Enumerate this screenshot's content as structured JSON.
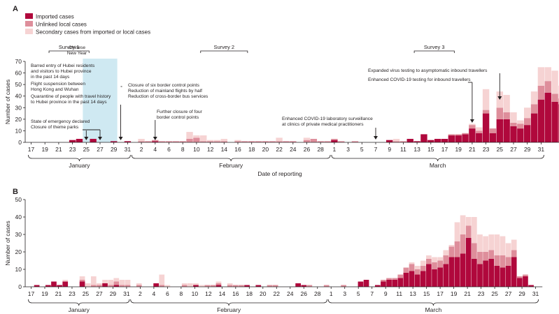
{
  "colors": {
    "imported": "#b0083c",
    "unlinked": "#de8e9b",
    "secondary": "#f6d3d3",
    "survey_shade": "#cfe9f2",
    "axis": "#231f20"
  },
  "legend": {
    "items": [
      {
        "key": "imported",
        "label": "Imported cases"
      },
      {
        "key": "unlinked",
        "label": "Unlinked local cases"
      },
      {
        "key": "secondary",
        "label": "Secondary cases from imported or local cases"
      }
    ]
  },
  "dates": {
    "start": "Jan 17",
    "month_days": [
      15,
      29,
      31
    ],
    "tick_labels": [
      "17",
      "19",
      "21",
      "23",
      "25",
      "27",
      "29",
      "31",
      "2",
      "4",
      "6",
      "8",
      "10",
      "12",
      "14",
      "16",
      "18",
      "20",
      "22",
      "24",
      "26",
      "28",
      "1",
      "3",
      "5",
      "7",
      "9",
      "11",
      "13",
      "15",
      "17",
      "19",
      "21",
      "23",
      "25",
      "27",
      "29",
      "31"
    ],
    "months": [
      "January",
      "February",
      "March"
    ]
  },
  "chart_data": [
    {
      "type": "bar",
      "stacked": true,
      "panel": "A",
      "title": "",
      "xlabel": "Date of reporting",
      "ylabel": "Number of cases",
      "ylim": [
        0,
        70
      ],
      "yticks": [
        0,
        10,
        20,
        30,
        40,
        50,
        60,
        70
      ],
      "x_range": [
        "Jan 17",
        "Mar 31"
      ],
      "series_order": [
        "imported",
        "unlinked",
        "secondary"
      ],
      "series": [
        {
          "key": "imported",
          "name": "Imported cases",
          "values": [
            0,
            0,
            0,
            0,
            0,
            0,
            2,
            3,
            0,
            3,
            0,
            0,
            1,
            0,
            1,
            0,
            0,
            0,
            1,
            0,
            0,
            0,
            0,
            0,
            0,
            0,
            0,
            0,
            0,
            0,
            0,
            0,
            0,
            0,
            0,
            0,
            0,
            0,
            0,
            0,
            0,
            0,
            0,
            0,
            2,
            0,
            0,
            0,
            0,
            0,
            0,
            0,
            2,
            0,
            0,
            3,
            1,
            7,
            2,
            3,
            3,
            6,
            6,
            7,
            12,
            8,
            25,
            8,
            20,
            20,
            14,
            12,
            15,
            25,
            37,
            43,
            35,
            33,
            24
          ]
        },
        {
          "key": "unlinked",
          "name": "Unlinked local cases",
          "values": [
            0,
            0,
            0,
            0,
            0,
            0,
            0,
            0,
            0,
            0,
            0,
            0,
            0,
            0,
            0,
            0,
            1,
            1,
            1,
            1,
            1,
            1,
            1,
            3,
            4,
            1,
            1,
            1,
            1,
            0,
            1,
            1,
            1,
            1,
            1,
            1,
            1,
            1,
            1,
            0,
            2,
            3,
            1,
            1,
            1,
            1,
            0,
            1,
            0,
            0,
            0,
            0,
            0,
            1,
            1,
            0,
            0,
            0,
            0,
            0,
            0,
            1,
            1,
            1,
            3,
            2,
            3,
            4,
            10,
            6,
            3,
            4,
            6,
            8,
            12,
            10,
            7,
            5,
            3
          ]
        },
        {
          "key": "secondary",
          "name": "Secondary cases from imported or local cases",
          "values": [
            0,
            0,
            0,
            0,
            0,
            0,
            0,
            0,
            0,
            0,
            0,
            0,
            0,
            0,
            0,
            0,
            2,
            0,
            0,
            0,
            0,
            0,
            0,
            6,
            2,
            5,
            1,
            1,
            2,
            0,
            1,
            0,
            0,
            0,
            0,
            0,
            3,
            0,
            0,
            0,
            2,
            0,
            0,
            0,
            0,
            0,
            0,
            0,
            0,
            0,
            0,
            0,
            0,
            2,
            0,
            0,
            0,
            0,
            0,
            0,
            0,
            0,
            0,
            0,
            1,
            3,
            18,
            0,
            14,
            15,
            9,
            3,
            9,
            11,
            16,
            12,
            20,
            11,
            5
          ]
        }
      ],
      "annotations": [
        {
          "text": "Barred entry of Hubei residents",
          "date_index": 6
        },
        {
          "text": "and visitors to Hubei province",
          "date_index": 6
        },
        {
          "text": "in the past 14 days",
          "date_index": 6
        },
        {
          "text": "Flight suspension between",
          "date_index": 6
        },
        {
          "text": "Hong Kong and Wuhan",
          "date_index": 6
        },
        {
          "text": "Quarantine of people with travel history",
          "date_index": 6
        },
        {
          "text": "to Hubei province in the past 14 days",
          "date_index": 6
        },
        {
          "text": "State of emergency declared",
          "date_index": 8
        },
        {
          "text": "Closure of theme parks",
          "date_index": 10
        },
        {
          "text": "Chinese",
          "date_index": 10
        },
        {
          "text": "New Year",
          "date_index": 10
        },
        {
          "text": "Closure of six border control points",
          "date_index": 13
        },
        {
          "text": "Reduction of mainland flights by half",
          "date_index": 13
        },
        {
          "text": "Reduction of cross-border bus services",
          "date_index": 13
        },
        {
          "text": "Further closure of four",
          "date_index": 18
        },
        {
          "text": "border control points",
          "date_index": 18
        },
        {
          "text": "Enhanced COVID-19 laboratory surveillance",
          "date_index": 50
        },
        {
          "text": "at clinics of private medical practitioners",
          "date_index": 50
        },
        {
          "text": "Expanded virus testing to asymptomatic inbound travellers",
          "date_index": 68
        },
        {
          "text": "Enhanced COVID-19 testing for inbound travellers",
          "date_index": 64
        }
      ],
      "surveys": [
        {
          "label": "Survey 1",
          "start_index": 3,
          "end_index": 8
        },
        {
          "label": "Survey 2",
          "start_index": 25,
          "end_index": 31
        },
        {
          "label": "Survey 3",
          "start_index": 56,
          "end_index": 61
        }
      ],
      "shaded_period": {
        "start_index": 8,
        "end_index": 12
      }
    },
    {
      "type": "bar",
      "stacked": true,
      "panel": "B",
      "title": "",
      "xlabel": "",
      "ylabel": "Number of cases",
      "ylim": [
        0,
        50
      ],
      "yticks": [
        0,
        10,
        20,
        30,
        40,
        50
      ],
      "x_range": [
        "Jan 17",
        "Mar 31"
      ],
      "series_order": [
        "imported",
        "unlinked",
        "secondary"
      ],
      "series": [
        {
          "key": "imported",
          "name": "Imported cases",
          "values": [
            0,
            1,
            0,
            1,
            3,
            1,
            3,
            0,
            0,
            3,
            0,
            0,
            0,
            2,
            0,
            1,
            0,
            0,
            0,
            0,
            0,
            0,
            2,
            0,
            0,
            0,
            0,
            0,
            0,
            1,
            0,
            0,
            0,
            1,
            0,
            0,
            0,
            0,
            1,
            0,
            1,
            0,
            0,
            0,
            0,
            0,
            0,
            2,
            1,
            0,
            0,
            0,
            0,
            0,
            0,
            0,
            0,
            0,
            3,
            4,
            0,
            1,
            3,
            4,
            4,
            5,
            8,
            9,
            7,
            9,
            13,
            10,
            11,
            13,
            17,
            17,
            19,
            28,
            16,
            13,
            15,
            16,
            12,
            11,
            12,
            17,
            5,
            6,
            1,
            0
          ]
        },
        {
          "key": "unlinked",
          "name": "Unlinked local cases",
          "values": [
            0,
            0,
            0,
            0,
            0,
            0,
            0,
            0,
            0,
            1,
            0,
            1,
            1,
            0,
            1,
            2,
            1,
            1,
            0,
            1,
            0,
            0,
            0,
            1,
            0,
            0,
            0,
            1,
            0,
            0,
            0,
            1,
            1,
            1,
            0,
            1,
            1,
            1,
            0,
            0,
            0,
            0,
            1,
            1,
            0,
            0,
            0,
            0,
            0,
            1,
            0,
            0,
            1,
            0,
            0,
            1,
            0,
            0,
            0,
            0,
            0,
            0,
            1,
            1,
            1,
            2,
            3,
            4,
            3,
            3,
            3,
            4,
            4,
            5,
            6,
            9,
            11,
            7,
            9,
            7,
            5,
            5,
            6,
            7,
            5,
            4,
            1,
            1,
            0,
            0
          ]
        },
        {
          "key": "secondary",
          "name": "Secondary cases from imported or local cases",
          "values": [
            0,
            0,
            0,
            0,
            0,
            0,
            1,
            0,
            0,
            2,
            2,
            5,
            1,
            2,
            3,
            2,
            3,
            3,
            0,
            1,
            0,
            0,
            0,
            6,
            1,
            0,
            0,
            1,
            2,
            1,
            1,
            0,
            0,
            1,
            0,
            1,
            0,
            0,
            0,
            0,
            0,
            0,
            0,
            0,
            0,
            0,
            0,
            0,
            0,
            0,
            0,
            0,
            0,
            0,
            0,
            0,
            0,
            0,
            0,
            0,
            0,
            0,
            0,
            0,
            0,
            0,
            0,
            1,
            2,
            3,
            2,
            3,
            2,
            3,
            1,
            11,
            11,
            5,
            15,
            10,
            9,
            9,
            12,
            11,
            8,
            6,
            0,
            0,
            0,
            0
          ]
        }
      ]
    }
  ],
  "panels": {
    "A": {
      "letter": "A"
    },
    "B": {
      "letter": "B"
    }
  }
}
